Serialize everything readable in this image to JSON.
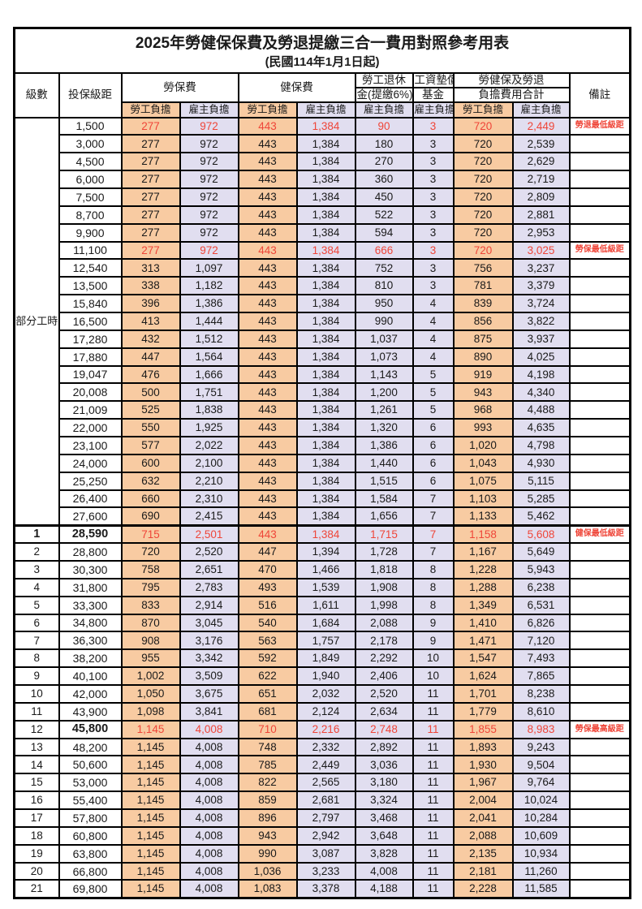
{
  "title": "2025年勞健保保費及勞退提繳三合一費用對照參考用表",
  "subtitle": "(民國114年1月1日起)",
  "colors": {
    "employee_bg": "#F8CBA2",
    "employer_bg": "#E1DEF0",
    "highlight_text": "#EF4538",
    "border": "#000000"
  },
  "header": {
    "level": "級數",
    "bracket": "投保級距",
    "labor": "勞保費",
    "health": "健保費",
    "pension_l1": "勞工退休",
    "pension_l2": "金(提繳6%)",
    "fund_l1": "工資墊償",
    "fund_l2": "基金",
    "total_l1": "勞健保及勞退",
    "total_l2": "負擔費用合計",
    "remark": "備註",
    "employee": "勞工負擔",
    "employer": "雇主負擔"
  },
  "part_time": {
    "label": "部分工時",
    "rowspan": 23
  },
  "rows": [
    {
      "level": "",
      "bracket": "1,500",
      "li_emp": "277",
      "li_er": "972",
      "hi_emp": "443",
      "hi_er": "1,384",
      "pension": "90",
      "fund": "3",
      "sum_emp": "720",
      "sum_er": "2,449",
      "remark": "勞退最低級距",
      "red": true,
      "bold": false,
      "thick_top": false
    },
    {
      "level": "",
      "bracket": "3,000",
      "li_emp": "277",
      "li_er": "972",
      "hi_emp": "443",
      "hi_er": "1,384",
      "pension": "180",
      "fund": "3",
      "sum_emp": "720",
      "sum_er": "2,539",
      "remark": "",
      "red": false,
      "bold": false,
      "thick_top": false
    },
    {
      "level": "",
      "bracket": "4,500",
      "li_emp": "277",
      "li_er": "972",
      "hi_emp": "443",
      "hi_er": "1,384",
      "pension": "270",
      "fund": "3",
      "sum_emp": "720",
      "sum_er": "2,629",
      "remark": "",
      "red": false,
      "bold": false,
      "thick_top": false
    },
    {
      "level": "",
      "bracket": "6,000",
      "li_emp": "277",
      "li_er": "972",
      "hi_emp": "443",
      "hi_er": "1,384",
      "pension": "360",
      "fund": "3",
      "sum_emp": "720",
      "sum_er": "2,719",
      "remark": "",
      "red": false,
      "bold": false,
      "thick_top": false
    },
    {
      "level": "",
      "bracket": "7,500",
      "li_emp": "277",
      "li_er": "972",
      "hi_emp": "443",
      "hi_er": "1,384",
      "pension": "450",
      "fund": "3",
      "sum_emp": "720",
      "sum_er": "2,809",
      "remark": "",
      "red": false,
      "bold": false,
      "thick_top": false
    },
    {
      "level": "",
      "bracket": "8,700",
      "li_emp": "277",
      "li_er": "972",
      "hi_emp": "443",
      "hi_er": "1,384",
      "pension": "522",
      "fund": "3",
      "sum_emp": "720",
      "sum_er": "2,881",
      "remark": "",
      "red": false,
      "bold": false,
      "thick_top": false
    },
    {
      "level": "",
      "bracket": "9,900",
      "li_emp": "277",
      "li_er": "972",
      "hi_emp": "443",
      "hi_er": "1,384",
      "pension": "594",
      "fund": "3",
      "sum_emp": "720",
      "sum_er": "2,953",
      "remark": "",
      "red": false,
      "bold": false,
      "thick_top": false
    },
    {
      "level": "",
      "bracket": "11,100",
      "li_emp": "277",
      "li_er": "972",
      "hi_emp": "443",
      "hi_er": "1,384",
      "pension": "666",
      "fund": "3",
      "sum_emp": "720",
      "sum_er": "3,025",
      "remark": "勞保最低級距",
      "red": true,
      "bold": false,
      "thick_top": false
    },
    {
      "level": "",
      "bracket": "12,540",
      "li_emp": "313",
      "li_er": "1,097",
      "hi_emp": "443",
      "hi_er": "1,384",
      "pension": "752",
      "fund": "3",
      "sum_emp": "756",
      "sum_er": "3,237",
      "remark": "",
      "red": false,
      "bold": false,
      "thick_top": false
    },
    {
      "level": "",
      "bracket": "13,500",
      "li_emp": "338",
      "li_er": "1,182",
      "hi_emp": "443",
      "hi_er": "1,384",
      "pension": "810",
      "fund": "3",
      "sum_emp": "781",
      "sum_er": "3,379",
      "remark": "",
      "red": false,
      "bold": false,
      "thick_top": false
    },
    {
      "level": "",
      "bracket": "15,840",
      "li_emp": "396",
      "li_er": "1,386",
      "hi_emp": "443",
      "hi_er": "1,384",
      "pension": "950",
      "fund": "4",
      "sum_emp": "839",
      "sum_er": "3,724",
      "remark": "",
      "red": false,
      "bold": false,
      "thick_top": false
    },
    {
      "level": "",
      "bracket": "16,500",
      "li_emp": "413",
      "li_er": "1,444",
      "hi_emp": "443",
      "hi_er": "1,384",
      "pension": "990",
      "fund": "4",
      "sum_emp": "856",
      "sum_er": "3,822",
      "remark": "",
      "red": false,
      "bold": false,
      "thick_top": false
    },
    {
      "level": "",
      "bracket": "17,280",
      "li_emp": "432",
      "li_er": "1,512",
      "hi_emp": "443",
      "hi_er": "1,384",
      "pension": "1,037",
      "fund": "4",
      "sum_emp": "875",
      "sum_er": "3,937",
      "remark": "",
      "red": false,
      "bold": false,
      "thick_top": false
    },
    {
      "level": "",
      "bracket": "17,880",
      "li_emp": "447",
      "li_er": "1,564",
      "hi_emp": "443",
      "hi_er": "1,384",
      "pension": "1,073",
      "fund": "4",
      "sum_emp": "890",
      "sum_er": "4,025",
      "remark": "",
      "red": false,
      "bold": false,
      "thick_top": false
    },
    {
      "level": "",
      "bracket": "19,047",
      "li_emp": "476",
      "li_er": "1,666",
      "hi_emp": "443",
      "hi_er": "1,384",
      "pension": "1,143",
      "fund": "5",
      "sum_emp": "919",
      "sum_er": "4,198",
      "remark": "",
      "red": false,
      "bold": false,
      "thick_top": false
    },
    {
      "level": "",
      "bracket": "20,008",
      "li_emp": "500",
      "li_er": "1,751",
      "hi_emp": "443",
      "hi_er": "1,384",
      "pension": "1,200",
      "fund": "5",
      "sum_emp": "943",
      "sum_er": "4,340",
      "remark": "",
      "red": false,
      "bold": false,
      "thick_top": false
    },
    {
      "level": "",
      "bracket": "21,009",
      "li_emp": "525",
      "li_er": "1,838",
      "hi_emp": "443",
      "hi_er": "1,384",
      "pension": "1,261",
      "fund": "5",
      "sum_emp": "968",
      "sum_er": "4,488",
      "remark": "",
      "red": false,
      "bold": false,
      "thick_top": false
    },
    {
      "level": "",
      "bracket": "22,000",
      "li_emp": "550",
      "li_er": "1,925",
      "hi_emp": "443",
      "hi_er": "1,384",
      "pension": "1,320",
      "fund": "6",
      "sum_emp": "993",
      "sum_er": "4,635",
      "remark": "",
      "red": false,
      "bold": false,
      "thick_top": false
    },
    {
      "level": "",
      "bracket": "23,100",
      "li_emp": "577",
      "li_er": "2,022",
      "hi_emp": "443",
      "hi_er": "1,384",
      "pension": "1,386",
      "fund": "6",
      "sum_emp": "1,020",
      "sum_er": "4,798",
      "remark": "",
      "red": false,
      "bold": false,
      "thick_top": false
    },
    {
      "level": "",
      "bracket": "24,000",
      "li_emp": "600",
      "li_er": "2,100",
      "hi_emp": "443",
      "hi_er": "1,384",
      "pension": "1,440",
      "fund": "6",
      "sum_emp": "1,043",
      "sum_er": "4,930",
      "remark": "",
      "red": false,
      "bold": false,
      "thick_top": false
    },
    {
      "level": "",
      "bracket": "25,250",
      "li_emp": "632",
      "li_er": "2,210",
      "hi_emp": "443",
      "hi_er": "1,384",
      "pension": "1,515",
      "fund": "6",
      "sum_emp": "1,075",
      "sum_er": "5,115",
      "remark": "",
      "red": false,
      "bold": false,
      "thick_top": false
    },
    {
      "level": "",
      "bracket": "26,400",
      "li_emp": "660",
      "li_er": "2,310",
      "hi_emp": "443",
      "hi_er": "1,384",
      "pension": "1,584",
      "fund": "7",
      "sum_emp": "1,103",
      "sum_er": "5,285",
      "remark": "",
      "red": false,
      "bold": false,
      "thick_top": false
    },
    {
      "level": "",
      "bracket": "27,600",
      "li_emp": "690",
      "li_er": "2,415",
      "hi_emp": "443",
      "hi_er": "1,384",
      "pension": "1,656",
      "fund": "7",
      "sum_emp": "1,133",
      "sum_er": "5,462",
      "remark": "",
      "red": false,
      "bold": false,
      "thick_top": false
    },
    {
      "level": "1",
      "bracket": "28,590",
      "li_emp": "715",
      "li_er": "2,501",
      "hi_emp": "443",
      "hi_er": "1,384",
      "pension": "1,715",
      "fund": "7",
      "sum_emp": "1,158",
      "sum_er": "5,608",
      "remark": "健保最低級距",
      "red": true,
      "bold": true,
      "thick_top": true
    },
    {
      "level": "2",
      "bracket": "28,800",
      "li_emp": "720",
      "li_er": "2,520",
      "hi_emp": "447",
      "hi_er": "1,394",
      "pension": "1,728",
      "fund": "7",
      "sum_emp": "1,167",
      "sum_er": "5,649",
      "remark": "",
      "red": false,
      "bold": false,
      "thick_top": false
    },
    {
      "level": "3",
      "bracket": "30,300",
      "li_emp": "758",
      "li_er": "2,651",
      "hi_emp": "470",
      "hi_er": "1,466",
      "pension": "1,818",
      "fund": "8",
      "sum_emp": "1,228",
      "sum_er": "5,943",
      "remark": "",
      "red": false,
      "bold": false,
      "thick_top": false
    },
    {
      "level": "4",
      "bracket": "31,800",
      "li_emp": "795",
      "li_er": "2,783",
      "hi_emp": "493",
      "hi_er": "1,539",
      "pension": "1,908",
      "fund": "8",
      "sum_emp": "1,288",
      "sum_er": "6,238",
      "remark": "",
      "red": false,
      "bold": false,
      "thick_top": false
    },
    {
      "level": "5",
      "bracket": "33,300",
      "li_emp": "833",
      "li_er": "2,914",
      "hi_emp": "516",
      "hi_er": "1,611",
      "pension": "1,998",
      "fund": "8",
      "sum_emp": "1,349",
      "sum_er": "6,531",
      "remark": "",
      "red": false,
      "bold": false,
      "thick_top": false
    },
    {
      "level": "6",
      "bracket": "34,800",
      "li_emp": "870",
      "li_er": "3,045",
      "hi_emp": "540",
      "hi_er": "1,684",
      "pension": "2,088",
      "fund": "9",
      "sum_emp": "1,410",
      "sum_er": "6,826",
      "remark": "",
      "red": false,
      "bold": false,
      "thick_top": false
    },
    {
      "level": "7",
      "bracket": "36,300",
      "li_emp": "908",
      "li_er": "3,176",
      "hi_emp": "563",
      "hi_er": "1,757",
      "pension": "2,178",
      "fund": "9",
      "sum_emp": "1,471",
      "sum_er": "7,120",
      "remark": "",
      "red": false,
      "bold": false,
      "thick_top": false
    },
    {
      "level": "8",
      "bracket": "38,200",
      "li_emp": "955",
      "li_er": "3,342",
      "hi_emp": "592",
      "hi_er": "1,849",
      "pension": "2,292",
      "fund": "10",
      "sum_emp": "1,547",
      "sum_er": "7,493",
      "remark": "",
      "red": false,
      "bold": false,
      "thick_top": false
    },
    {
      "level": "9",
      "bracket": "40,100",
      "li_emp": "1,002",
      "li_er": "3,509",
      "hi_emp": "622",
      "hi_er": "1,940",
      "pension": "2,406",
      "fund": "10",
      "sum_emp": "1,624",
      "sum_er": "7,865",
      "remark": "",
      "red": false,
      "bold": false,
      "thick_top": false
    },
    {
      "level": "10",
      "bracket": "42,000",
      "li_emp": "1,050",
      "li_er": "3,675",
      "hi_emp": "651",
      "hi_er": "2,032",
      "pension": "2,520",
      "fund": "11",
      "sum_emp": "1,701",
      "sum_er": "8,238",
      "remark": "",
      "red": false,
      "bold": false,
      "thick_top": false
    },
    {
      "level": "11",
      "bracket": "43,900",
      "li_emp": "1,098",
      "li_er": "3,841",
      "hi_emp": "681",
      "hi_er": "2,124",
      "pension": "2,634",
      "fund": "11",
      "sum_emp": "1,779",
      "sum_er": "8,610",
      "remark": "",
      "red": false,
      "bold": false,
      "thick_top": false
    },
    {
      "level": "12",
      "bracket": "45,800",
      "li_emp": "1,145",
      "li_er": "4,008",
      "hi_emp": "710",
      "hi_er": "2,216",
      "pension": "2,748",
      "fund": "11",
      "sum_emp": "1,855",
      "sum_er": "8,983",
      "remark": "勞保最高級距",
      "red": true,
      "bold": true,
      "thick_top": false
    },
    {
      "level": "13",
      "bracket": "48,200",
      "li_emp": "1,145",
      "li_er": "4,008",
      "hi_emp": "748",
      "hi_er": "2,332",
      "pension": "2,892",
      "fund": "11",
      "sum_emp": "1,893",
      "sum_er": "9,243",
      "remark": "",
      "red": false,
      "bold": false,
      "thick_top": false
    },
    {
      "level": "14",
      "bracket": "50,600",
      "li_emp": "1,145",
      "li_er": "4,008",
      "hi_emp": "785",
      "hi_er": "2,449",
      "pension": "3,036",
      "fund": "11",
      "sum_emp": "1,930",
      "sum_er": "9,504",
      "remark": "",
      "red": false,
      "bold": false,
      "thick_top": false
    },
    {
      "level": "15",
      "bracket": "53,000",
      "li_emp": "1,145",
      "li_er": "4,008",
      "hi_emp": "822",
      "hi_er": "2,565",
      "pension": "3,180",
      "fund": "11",
      "sum_emp": "1,967",
      "sum_er": "9,764",
      "remark": "",
      "red": false,
      "bold": false,
      "thick_top": false
    },
    {
      "level": "16",
      "bracket": "55,400",
      "li_emp": "1,145",
      "li_er": "4,008",
      "hi_emp": "859",
      "hi_er": "2,681",
      "pension": "3,324",
      "fund": "11",
      "sum_emp": "2,004",
      "sum_er": "10,024",
      "remark": "",
      "red": false,
      "bold": false,
      "thick_top": false
    },
    {
      "level": "17",
      "bracket": "57,800",
      "li_emp": "1,145",
      "li_er": "4,008",
      "hi_emp": "896",
      "hi_er": "2,797",
      "pension": "3,468",
      "fund": "11",
      "sum_emp": "2,041",
      "sum_er": "10,284",
      "remark": "",
      "red": false,
      "bold": false,
      "thick_top": false
    },
    {
      "level": "18",
      "bracket": "60,800",
      "li_emp": "1,145",
      "li_er": "4,008",
      "hi_emp": "943",
      "hi_er": "2,942",
      "pension": "3,648",
      "fund": "11",
      "sum_emp": "2,088",
      "sum_er": "10,609",
      "remark": "",
      "red": false,
      "bold": false,
      "thick_top": false
    },
    {
      "level": "19",
      "bracket": "63,800",
      "li_emp": "1,145",
      "li_er": "4,008",
      "hi_emp": "990",
      "hi_er": "3,087",
      "pension": "3,828",
      "fund": "11",
      "sum_emp": "2,135",
      "sum_er": "10,934",
      "remark": "",
      "red": false,
      "bold": false,
      "thick_top": false
    },
    {
      "level": "20",
      "bracket": "66,800",
      "li_emp": "1,145",
      "li_er": "4,008",
      "hi_emp": "1,036",
      "hi_er": "3,233",
      "pension": "4,008",
      "fund": "11",
      "sum_emp": "2,181",
      "sum_er": "11,260",
      "remark": "",
      "red": false,
      "bold": false,
      "thick_top": false
    },
    {
      "level": "21",
      "bracket": "69,800",
      "li_emp": "1,145",
      "li_er": "4,008",
      "hi_emp": "1,083",
      "hi_er": "3,378",
      "pension": "4,188",
      "fund": "11",
      "sum_emp": "2,228",
      "sum_er": "11,585",
      "remark": "",
      "red": false,
      "bold": false,
      "thick_top": false
    }
  ]
}
